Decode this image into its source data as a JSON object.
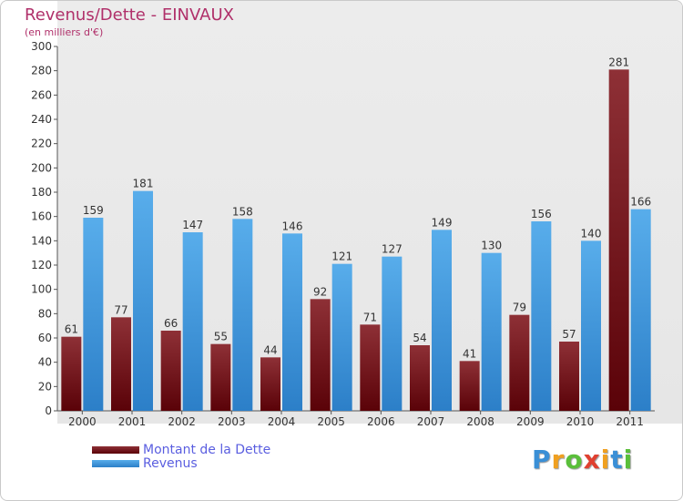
{
  "title": "Revenus/Dette - EINVAUX",
  "subtitle": "(en milliers d'€)",
  "colors": {
    "debt": "#7a1f23",
    "revenue": "#4da3e6",
    "title": "#b0306a",
    "legend_text": "#5a5ee0"
  },
  "legend": {
    "items": [
      {
        "label": "Montant de la Dette"
      },
      {
        "label": "Revenus"
      }
    ]
  },
  "logo": {
    "chars": [
      {
        "c": "P",
        "color": "#3a8fd6"
      },
      {
        "c": "r",
        "color": "#f0a020"
      },
      {
        "c": "o",
        "color": "#5abf3a"
      },
      {
        "c": "x",
        "color": "#e04030"
      },
      {
        "c": "i",
        "color": "#f0a020"
      },
      {
        "c": "t",
        "color": "#3a8fd6"
      },
      {
        "c": "i",
        "color": "#5abf3a"
      }
    ]
  },
  "chart_data": {
    "type": "bar",
    "title": "Revenus/Dette - EINVAUX",
    "subtitle": "(en milliers d'€)",
    "categories": [
      "2000",
      "2001",
      "2002",
      "2003",
      "2004",
      "2005",
      "2006",
      "2007",
      "2008",
      "2009",
      "2010",
      "2011"
    ],
    "series": [
      {
        "name": "Montant de la Dette",
        "values": [
          61,
          77,
          66,
          55,
          44,
          92,
          71,
          54,
          41,
          79,
          57,
          281
        ]
      },
      {
        "name": "Revenus",
        "values": [
          159,
          181,
          147,
          158,
          146,
          121,
          127,
          149,
          130,
          156,
          140,
          166
        ]
      }
    ],
    "ylim": [
      0,
      300
    ],
    "yticks": [
      0,
      20,
      40,
      60,
      80,
      100,
      120,
      140,
      160,
      180,
      200,
      220,
      240,
      260,
      280,
      300
    ],
    "grid": false,
    "legend_position": "bottom-left"
  }
}
